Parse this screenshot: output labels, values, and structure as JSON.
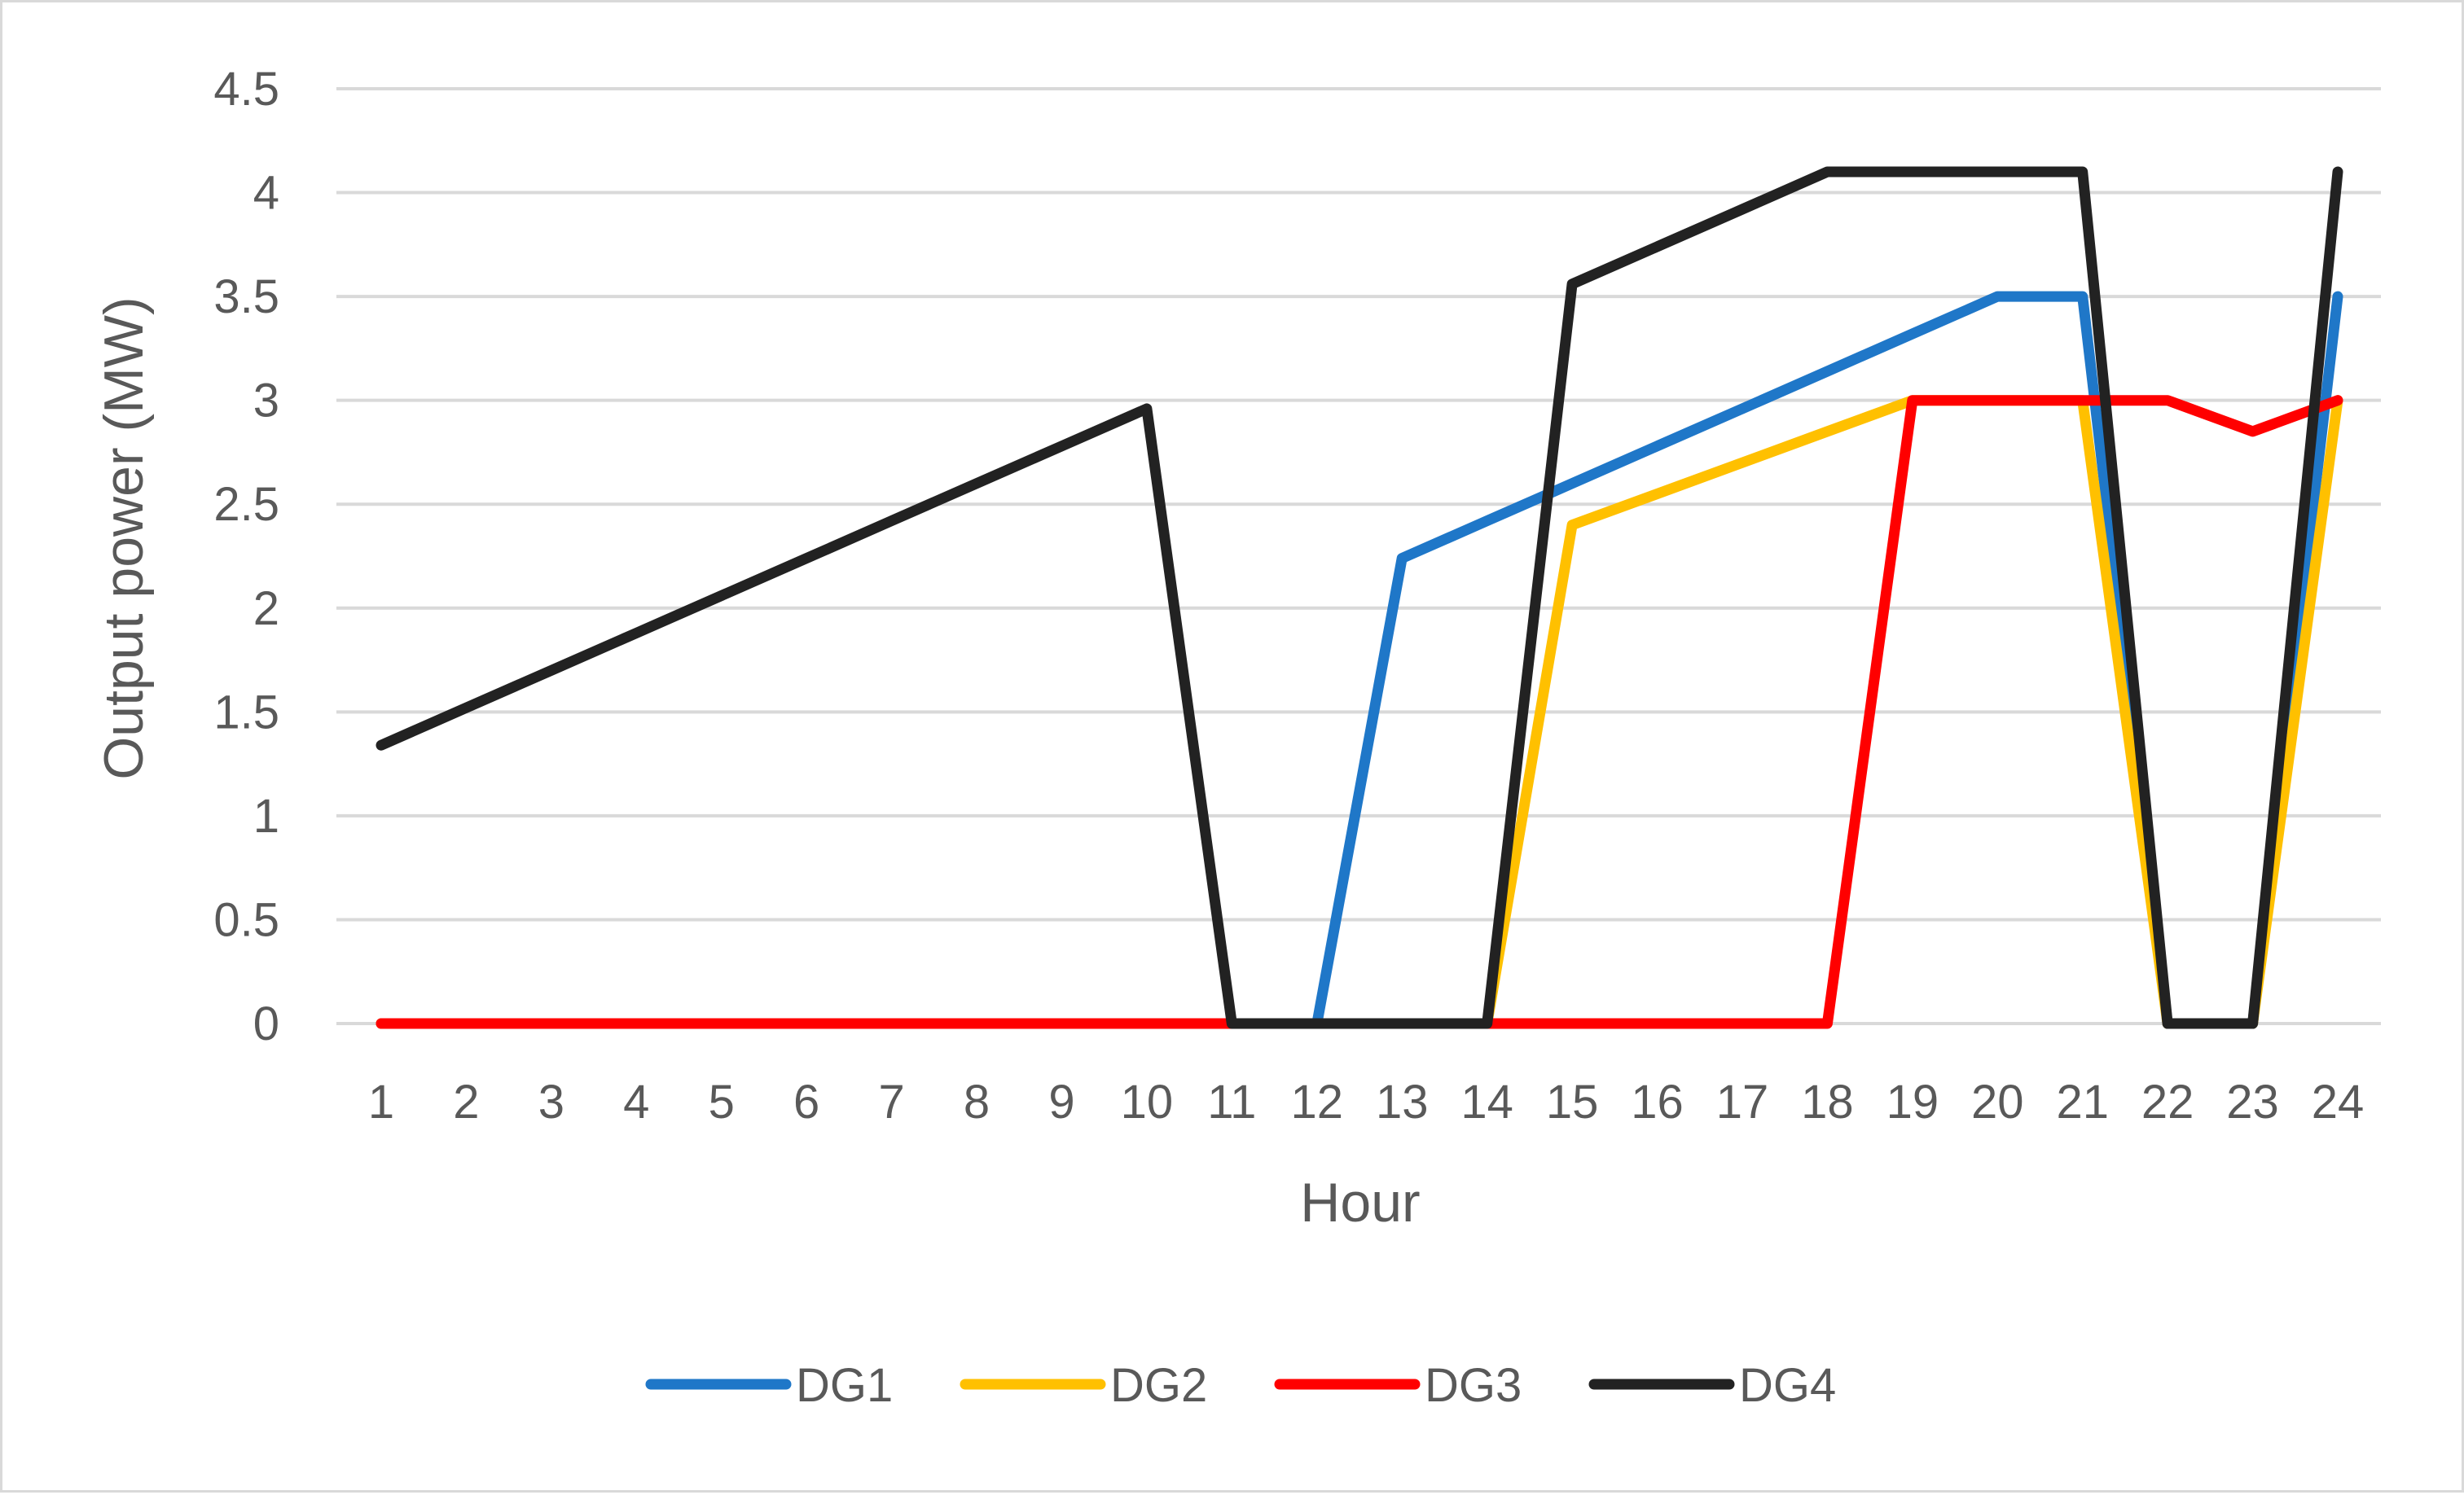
{
  "chart_data": {
    "type": "line",
    "title": "",
    "xlabel": "Hour",
    "ylabel": "Output power (MW)",
    "categories": [
      "1",
      "2",
      "3",
      "4",
      "5",
      "6",
      "7",
      "8",
      "9",
      "10",
      "11",
      "12",
      "13",
      "14",
      "15",
      "16",
      "17",
      "18",
      "19",
      "20",
      "21",
      "22",
      "23",
      "24"
    ],
    "y_ticks": [
      "0",
      "0.5",
      "1",
      "1.5",
      "2",
      "2.5",
      "3",
      "3.5",
      "4",
      "4.5"
    ],
    "ylim": [
      0,
      4.5
    ],
    "grid": true,
    "legend_position": "bottom",
    "series": [
      {
        "name": "DG1",
        "color": "#1f77c8",
        "values": [
          0,
          0,
          0,
          0,
          0,
          0,
          0,
          0,
          0,
          0,
          0,
          0,
          2.24,
          2.42,
          2.6,
          2.78,
          2.96,
          3.14,
          3.32,
          3.5,
          3.5,
          0,
          0,
          3.5
        ]
      },
      {
        "name": "DG2",
        "color": "#ffc000",
        "values": [
          0,
          0,
          0,
          0,
          0,
          0,
          0,
          0,
          0,
          0,
          0,
          0,
          0,
          0,
          2.4,
          2.55,
          2.7,
          2.85,
          3.0,
          3.0,
          3.0,
          0,
          0,
          3.0
        ]
      },
      {
        "name": "DG3",
        "color": "#ff0000",
        "values": [
          0,
          0,
          0,
          0,
          0,
          0,
          0,
          0,
          0,
          0,
          0,
          0,
          0,
          0,
          0,
          0,
          0,
          0,
          3.0,
          3.0,
          3.0,
          3.0,
          2.85,
          3.0
        ]
      },
      {
        "name": "DG4",
        "color": "#222222",
        "values": [
          1.34,
          1.52,
          1.7,
          1.88,
          2.06,
          2.24,
          2.42,
          2.6,
          2.78,
          2.96,
          0,
          0,
          0,
          0,
          3.56,
          3.74,
          3.92,
          4.1,
          4.1,
          4.1,
          4.1,
          0,
          0,
          4.1
        ]
      }
    ]
  }
}
